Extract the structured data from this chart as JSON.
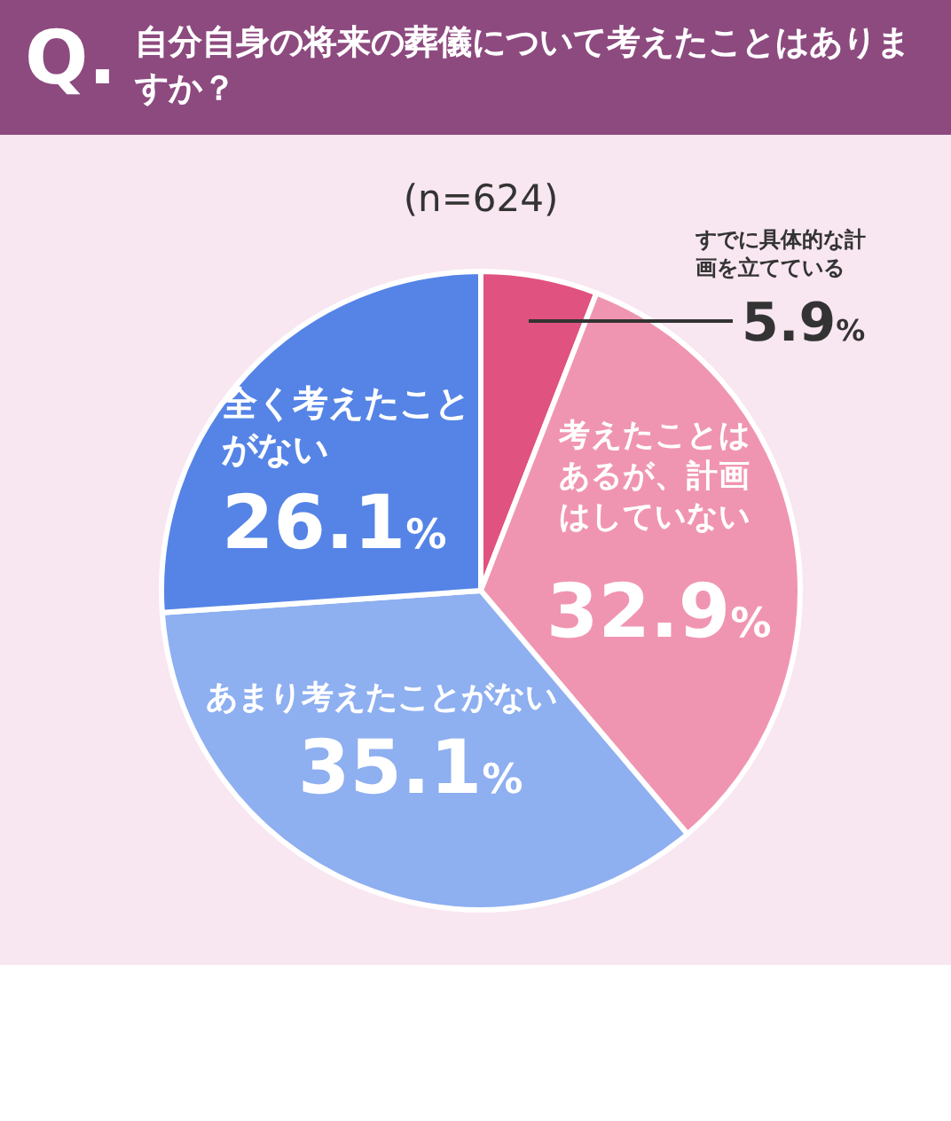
{
  "chart_data": {
    "type": "pie",
    "title": "自分自身の将来の葬儀について考えたことはありますか？",
    "subtitle": "(n=624)",
    "annotations": [
      "Q."
    ],
    "categories": [
      "すでに具体的な計画を立てている",
      "考えたことはあるが、計画はしていない",
      "あまり考えたことがない",
      "全く考えたことがない"
    ],
    "values": [
      5.9,
      32.9,
      35.1,
      26.1
    ],
    "colors": [
      "#e0527f",
      "#f095b1",
      "#8eaff0",
      "#5584e6"
    ],
    "value_labels": [
      "5.9%",
      "32.9%",
      "35.1%",
      "26.1%"
    ]
  }
}
